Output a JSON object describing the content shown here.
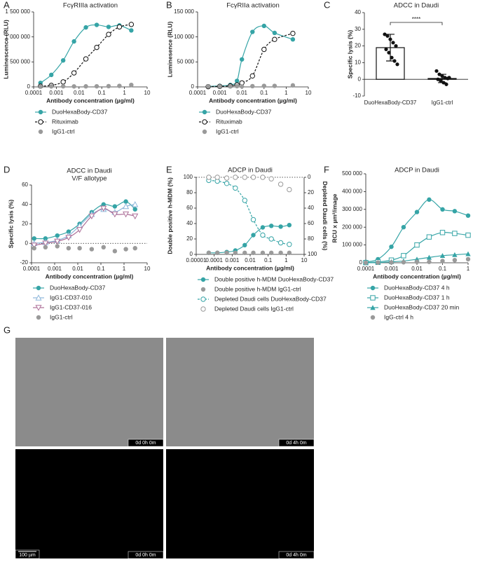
{
  "chart_data": [
    {
      "panel": "A",
      "type": "line",
      "title": "FcγRIIIa activation",
      "xlabel": "Antibody concentration (µg/ml)",
      "ylabel": "Luminescence (RLU)",
      "xscale": "log",
      "xlim": [
        0.0001,
        10
      ],
      "xticks": [
        0.0001,
        0.001,
        0.01,
        0.1,
        1,
        10
      ],
      "ylim": [
        0,
        1500000
      ],
      "yticks": [
        0,
        {
          "value": 500000,
          "label": "500 000"
        },
        {
          "value": 1000000,
          "label": "1 000 000"
        },
        {
          "value": 1500000,
          "label": "1 500 000"
        }
      ],
      "x": [
        0.0002,
        0.0006,
        0.002,
        0.006,
        0.02,
        0.06,
        0.2,
        0.6,
        2
      ],
      "series": [
        {
          "name": "DuoHexaBody-CD37",
          "color": "#35a4a6",
          "marker": "filled-circle",
          "line": "solid",
          "values": [
            80000,
            240000,
            530000,
            910000,
            1190000,
            1240000,
            1200000,
            1230000,
            1130000
          ]
        },
        {
          "name": "Rituximab",
          "color": "#111111",
          "marker": "open-circle",
          "line": "dashed",
          "values": [
            15000,
            30000,
            100000,
            280000,
            560000,
            790000,
            1050000,
            1200000,
            1250000
          ]
        },
        {
          "name": "IgG1-ctrl",
          "color": "#9a9a9a",
          "marker": "filled-circle",
          "line": "none",
          "values": [
            10000,
            10000,
            12000,
            10000,
            11000,
            12000,
            15000,
            20000,
            40000
          ]
        }
      ]
    },
    {
      "panel": "B",
      "type": "line",
      "title": "FcγRIIa activation",
      "xlabel": "Antibody concentration (µg/ml)",
      "ylabel": "Luminesence (RLU)",
      "xscale": "log",
      "xlim": [
        0.0001,
        10
      ],
      "xticks": [
        0.0001,
        0.001,
        0.01,
        0.1,
        1,
        10
      ],
      "ylim": [
        0,
        150000
      ],
      "yticks": [
        0,
        {
          "value": 50000,
          "label": "50 000"
        },
        {
          "value": 100000,
          "label": "100 000"
        },
        {
          "value": 150000,
          "label": "150 000"
        }
      ],
      "x": [
        0.0003,
        0.001,
        0.003,
        0.006,
        0.01,
        0.03,
        0.1,
        0.3,
        2
      ],
      "series": [
        {
          "name": "DuoHexaBody-CD37",
          "color": "#35a4a6",
          "marker": "filled-circle",
          "line": "solid",
          "values": [
            1000,
            2000,
            4000,
            12000,
            55000,
            110000,
            122000,
            108000,
            95000
          ]
        },
        {
          "name": "Rituximab",
          "color": "#111111",
          "marker": "open-circle",
          "line": "dashed",
          "values": [
            500,
            1000,
            2000,
            4000,
            8000,
            22000,
            75000,
            95000,
            107000
          ]
        },
        {
          "name": "IgG1-ctrl",
          "color": "#9a9a9a",
          "marker": "filled-circle",
          "line": "none",
          "values": [
            1000,
            1000,
            1000,
            1500,
            1000,
            1500,
            2000,
            2000,
            3000
          ]
        }
      ]
    },
    {
      "panel": "C",
      "type": "bar",
      "title": "ADCC in Daudi",
      "ylabel": "Specific lysis (%)",
      "significance": "****",
      "categories": [
        "DuoHexaBody-CD37",
        "IgG1-ctrl"
      ],
      "values": [
        19,
        0.5
      ],
      "errors": [
        8,
        2.5
      ],
      "color": "#111111",
      "points": [
        [
          27,
          26,
          24,
          22,
          20,
          18,
          16,
          13,
          11,
          9
        ],
        [
          5,
          3,
          2,
          1,
          0.5,
          0,
          -1,
          -2,
          -3,
          1
        ]
      ],
      "ylim": [
        -10,
        40
      ],
      "yticks": [
        -10,
        0,
        10,
        20,
        30,
        40
      ]
    },
    {
      "panel": "D",
      "type": "line",
      "title": "ADCC in Daudi",
      "subtitle": "V/F allotype",
      "xlabel": "Antibody concentration (µg/ml)",
      "ylabel": "Specific lysis (%)",
      "xscale": "log",
      "xlim": [
        0.0001,
        10
      ],
      "xticks": [
        0.0001,
        0.001,
        0.01,
        0.1,
        1,
        10
      ],
      "reference_line": 0,
      "ylim": [
        -20,
        60
      ],
      "yticks": [
        -20,
        0,
        20,
        40,
        60
      ],
      "x": [
        0.00013,
        0.0004,
        0.0013,
        0.004,
        0.012,
        0.04,
        0.13,
        0.4,
        1.2,
        3
      ],
      "series": [
        {
          "name": "DuoHexaBody-CD37",
          "color": "#35a4a6",
          "marker": "filled-circle",
          "line": "solid",
          "values": [
            5,
            5,
            8,
            12,
            20,
            32,
            40,
            38,
            43,
            35
          ]
        },
        {
          "name": "IgG1-CD37-010",
          "color": "#8db6da",
          "marker": "open-triangle",
          "line": "solid",
          "values": [
            0,
            1,
            3,
            8,
            18,
            30,
            35,
            32,
            38,
            40
          ]
        },
        {
          "name": "IgG1-CD37-016",
          "color": "#ad6f98",
          "marker": "open-triangle-down",
          "line": "solid",
          "values": [
            -2,
            0,
            2,
            6,
            14,
            28,
            36,
            30,
            30,
            28
          ]
        },
        {
          "name": "IgG1-ctrl",
          "color": "#9a9a9a",
          "marker": "filled-circle",
          "line": "none",
          "values": [
            -5,
            -4,
            -3,
            -5,
            -5,
            -6,
            -4,
            -8,
            -6,
            -5
          ]
        }
      ]
    },
    {
      "panel": "E",
      "type": "line",
      "title": "ADCP in Daudi",
      "xlabel": "Antibody concentration (µg/ml)",
      "ylabel": "Double positive h-MDM (%)",
      "y2label": "Depleted Daudi cells (%)",
      "xscale": "log",
      "xlim": [
        1e-05,
        10
      ],
      "xticks": [
        1e-05,
        0.0001,
        0.001,
        0.01,
        0.1,
        1,
        10
      ],
      "reference_line": 100,
      "ylim": [
        0,
        100
      ],
      "yticks": [
        0,
        20,
        40,
        60,
        80,
        100
      ],
      "y2lim": [
        100,
        0
      ],
      "y2ticks": [
        0,
        20,
        40,
        60,
        80,
        100
      ],
      "x": [
        5e-05,
        0.00015,
        0.0005,
        0.0015,
        0.005,
        0.015,
        0.05,
        0.15,
        0.5,
        1.5
      ],
      "series": [
        {
          "name": "Double positive h-MDM DuoHexaBody-CD37",
          "color": "#35a4a6",
          "marker": "filled-circle",
          "line": "solid",
          "values": [
            2,
            2,
            3,
            5,
            12,
            25,
            35,
            37,
            36,
            38
          ]
        },
        {
          "name": "Double positive h-MDM IgG1-ctrl",
          "color": "#9a9a9a",
          "marker": "filled-circle",
          "line": "none",
          "values": [
            2,
            2,
            2,
            2,
            2,
            2,
            2,
            2,
            2,
            2
          ]
        },
        {
          "name": "Depleted Daudi cells DuoHexaBody-CD37",
          "color": "#35a4a6",
          "marker": "open-circle",
          "line": "dashed",
          "axis": "y2",
          "values": [
            4,
            5,
            8,
            14,
            30,
            55,
            75,
            80,
            85,
            87
          ]
        },
        {
          "name": "Depleted Daudi cells IgG1-ctrl",
          "color": "#9a9a9a",
          "marker": "open-circle",
          "line": "none",
          "axis": "y2",
          "values": [
            0,
            0,
            1,
            0,
            0,
            0,
            0,
            2,
            9,
            16
          ]
        }
      ]
    },
    {
      "panel": "F",
      "type": "line",
      "title": "ADCP in Daudi",
      "xlabel": "Antibody concentration (µg/ml)",
      "ylabel": "RCU x µm²/image",
      "xscale": "log",
      "xlim": [
        0.0001,
        1
      ],
      "xticks": [
        0.0001,
        0.001,
        0.01,
        0.1,
        1
      ],
      "ylim": [
        0,
        500000
      ],
      "yticks": [
        0,
        {
          "value": 100000,
          "label": "100 000"
        },
        {
          "value": 200000,
          "label": "200 000"
        },
        {
          "value": 300000,
          "label": "300 000"
        },
        {
          "value": 400000,
          "label": "400 000"
        },
        {
          "value": 500000,
          "label": "500 000"
        }
      ],
      "x": [
        0.0001,
        0.0003,
        0.001,
        0.003,
        0.01,
        0.03,
        0.1,
        0.3,
        1
      ],
      "series": [
        {
          "name": "DuoHexaBody-CD37 4 h",
          "color": "#35a4a6",
          "marker": "filled-circle",
          "line": "solid",
          "values": [
            5000,
            20000,
            90000,
            200000,
            285000,
            355000,
            300000,
            290000,
            265000
          ]
        },
        {
          "name": "DuoHexaBody-CD37 1 h",
          "color": "#35a4a6",
          "marker": "open-square",
          "line": "solid",
          "values": [
            1000,
            5000,
            15000,
            40000,
            100000,
            145000,
            170000,
            165000,
            155000
          ]
        },
        {
          "name": "DuoHexaBody-CD37 20 min",
          "color": "#35a4a6",
          "marker": "triangle",
          "line": "solid",
          "values": [
            500,
            1000,
            5000,
            10000,
            20000,
            30000,
            40000,
            45000,
            50000
          ]
        },
        {
          "name": "IgG-ctrl 4 h",
          "color": "#9a9a9a",
          "marker": "filled-circle",
          "line": "none",
          "values": [
            500,
            1000,
            2000,
            3000,
            5000,
            5000,
            10000,
            15000,
            20000
          ]
        }
      ]
    }
  ],
  "images": {
    "panel": "G",
    "scale_bar": "100 µm",
    "frames": [
      {
        "timestamp": "0d 0h 0m"
      },
      {
        "timestamp": "0d 4h 0m"
      },
      {
        "timestamp": "0d 0h 0m"
      },
      {
        "timestamp": "0d 4h 0m"
      }
    ]
  }
}
